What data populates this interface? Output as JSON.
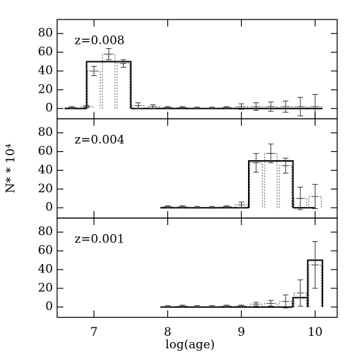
{
  "chart_data": [
    {
      "type": "histogram",
      "title": "z=0.008",
      "bins": [
        6.6,
        6.9,
        7.5,
        10.1
      ],
      "values": [
        0,
        50,
        0
      ],
      "errorbars": {
        "x": [
          6.7,
          6.9,
          7.0,
          7.2,
          7.4,
          7.6,
          7.8,
          8.0,
          8.2,
          8.4,
          8.6,
          8.8,
          9.0,
          9.2,
          9.4,
          9.6,
          9.8,
          10.0
        ],
        "values": [
          1,
          2,
          40,
          58,
          48,
          3,
          2,
          1,
          1,
          0.5,
          0.5,
          1,
          2,
          2,
          2,
          2,
          2,
          2
        ],
        "errors": [
          1,
          1,
          5,
          6,
          4,
          3,
          2,
          1,
          1,
          1,
          1,
          1,
          3,
          4,
          5,
          6,
          10,
          13
        ]
      },
      "xlim": [
        6.5,
        10.3
      ],
      "ylim": [
        -11,
        95
      ],
      "yticks": [
        0,
        20,
        40,
        60,
        80
      ]
    },
    {
      "type": "histogram",
      "title": "z=0.004",
      "bins": [
        7.9,
        9.1,
        9.7,
        10.0
      ],
      "values": [
        0,
        50,
        0
      ],
      "errorbars": {
        "x": [
          8.0,
          8.2,
          8.4,
          8.6,
          8.8,
          9.0,
          9.2,
          9.4,
          9.6,
          9.8,
          10.0
        ],
        "values": [
          1,
          1,
          0.5,
          0.5,
          1,
          3,
          48,
          58,
          45,
          10,
          12
        ],
        "errors": [
          1,
          1,
          1,
          1,
          1,
          3,
          10,
          10,
          8,
          12,
          13
        ]
      },
      "xlim": [
        6.5,
        10.3
      ],
      "ylim": [
        -11,
        95
      ],
      "yticks": [
        0,
        20,
        40,
        60,
        80
      ],
      "y_label": "N* * 10⁴"
    },
    {
      "type": "histogram",
      "title": "z=0.001",
      "bins": [
        7.9,
        9.7,
        9.9,
        10.1
      ],
      "values": [
        0,
        10,
        50
      ],
      "errorbars": {
        "x": [
          8.0,
          8.2,
          8.4,
          8.6,
          8.8,
          9.0,
          9.2,
          9.4,
          9.6,
          9.8,
          10.0
        ],
        "values": [
          0.5,
          1,
          0.5,
          0.5,
          1,
          1,
          3,
          4,
          6,
          15,
          45
        ],
        "errors": [
          1,
          1,
          1,
          1,
          1,
          1,
          2,
          3,
          7,
          14,
          25
        ]
      },
      "xlim": [
        6.5,
        10.3
      ],
      "ylim": [
        -11,
        95
      ],
      "yticks": [
        0,
        20,
        40,
        60,
        80
      ],
      "xticks": [
        7,
        8,
        9,
        10
      ],
      "x_label": "log(age)"
    }
  ]
}
